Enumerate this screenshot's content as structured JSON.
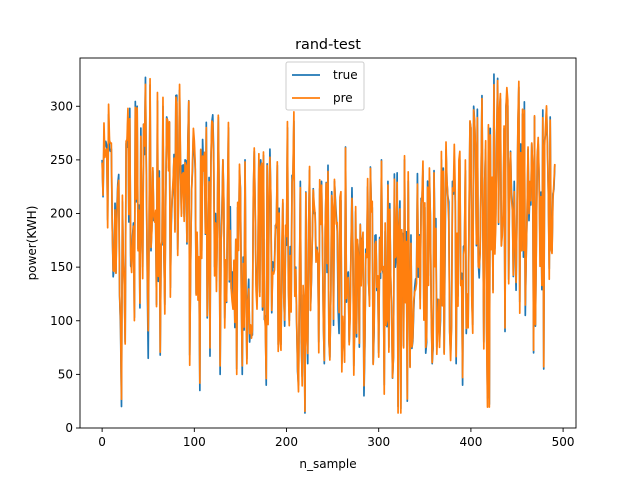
{
  "chart_data": {
    "type": "line",
    "title": "rand-test",
    "xlabel": "n_sample",
    "ylabel": "power(KWH)",
    "xlim": [
      -24,
      514
    ],
    "ylim": [
      0,
      345
    ],
    "xticks": [
      0,
      100,
      200,
      300,
      400,
      500
    ],
    "yticks": [
      0,
      50,
      100,
      150,
      200,
      250,
      300
    ],
    "xtick_labels": [
      "0",
      "100",
      "200",
      "300",
      "400",
      "500"
    ],
    "ytick_labels": [
      "0",
      "50",
      "100",
      "150",
      "200",
      "250",
      "300"
    ],
    "grid": false,
    "legend_position": "upper center",
    "n_points": 492,
    "anchors": [
      [
        0,
        250
      ],
      [
        10,
        220
      ],
      [
        20,
        160
      ],
      [
        30,
        210
      ],
      [
        40,
        220
      ],
      [
        50,
        215
      ],
      [
        60,
        205
      ],
      [
        70,
        220
      ],
      [
        80,
        225
      ],
      [
        90,
        215
      ],
      [
        100,
        205
      ],
      [
        110,
        200
      ],
      [
        120,
        190
      ],
      [
        130,
        175
      ],
      [
        140,
        170
      ],
      [
        150,
        165
      ],
      [
        160,
        160
      ],
      [
        170,
        165
      ],
      [
        180,
        150
      ],
      [
        190,
        150
      ],
      [
        200,
        155
      ],
      [
        210,
        145
      ],
      [
        220,
        140
      ],
      [
        230,
        145
      ],
      [
        240,
        140
      ],
      [
        250,
        140
      ],
      [
        260,
        150
      ],
      [
        270,
        145
      ],
      [
        280,
        150
      ],
      [
        290,
        150
      ],
      [
        300,
        145
      ],
      [
        310,
        140
      ],
      [
        320,
        145
      ],
      [
        330,
        150
      ],
      [
        340,
        150
      ],
      [
        350,
        160
      ],
      [
        360,
        160
      ],
      [
        370,
        170
      ],
      [
        380,
        175
      ],
      [
        390,
        185
      ],
      [
        400,
        190
      ],
      [
        410,
        200
      ],
      [
        420,
        200
      ],
      [
        430,
        210
      ],
      [
        440,
        215
      ],
      [
        450,
        215
      ],
      [
        460,
        215
      ],
      [
        470,
        210
      ],
      [
        480,
        215
      ],
      [
        491,
        245
      ]
    ],
    "amplitude_profile": [
      [
        0,
        80
      ],
      [
        40,
        95
      ],
      [
        120,
        95
      ],
      [
        170,
        100
      ],
      [
        220,
        100
      ],
      [
        300,
        95
      ],
      [
        340,
        100
      ],
      [
        400,
        110
      ],
      [
        450,
        100
      ],
      [
        491,
        85
      ]
    ],
    "pinned_points": [
      [
        0,
        250
      ],
      [
        3,
        262
      ],
      [
        6,
        194
      ],
      [
        9,
        258
      ],
      [
        12,
        141
      ],
      [
        16,
        205
      ],
      [
        19,
        123
      ],
      [
        21,
        20
      ],
      [
        25,
        80
      ],
      [
        28,
        290
      ],
      [
        30,
        298
      ],
      [
        35,
        103
      ],
      [
        38,
        300
      ],
      [
        41,
        112
      ],
      [
        44,
        150
      ],
      [
        47,
        327
      ],
      [
        50,
        65
      ],
      [
        52,
        320
      ],
      [
        55,
        240
      ],
      [
        57,
        195
      ],
      [
        60,
        305
      ],
      [
        63,
        68
      ],
      [
        66,
        300
      ],
      [
        68,
        115
      ],
      [
        70,
        290
      ],
      [
        73,
        285
      ],
      [
        75,
        190
      ],
      [
        80,
        310
      ],
      [
        84,
        315
      ],
      [
        86,
        200
      ],
      [
        90,
        250
      ],
      [
        95,
        68
      ],
      [
        100,
        260
      ],
      [
        103,
        180
      ],
      [
        106,
        35
      ],
      [
        110,
        240
      ],
      [
        113,
        285
      ],
      [
        117,
        67
      ],
      [
        120,
        292
      ],
      [
        123,
        200
      ],
      [
        126,
        290
      ],
      [
        128,
        50
      ],
      [
        131,
        250
      ],
      [
        134,
        150
      ],
      [
        137,
        280
      ],
      [
        140,
        130
      ],
      [
        143,
        155
      ],
      [
        146,
        55
      ],
      [
        149,
        240
      ],
      [
        152,
        50
      ],
      [
        155,
        250
      ],
      [
        158,
        120
      ],
      [
        161,
        95
      ],
      [
        165,
        258
      ],
      [
        168,
        120
      ],
      [
        172,
        250
      ],
      [
        174,
        110
      ],
      [
        178,
        40
      ],
      [
        182,
        260
      ],
      [
        186,
        150
      ],
      [
        190,
        245
      ],
      [
        193,
        90
      ],
      [
        196,
        210
      ],
      [
        198,
        95
      ],
      [
        201,
        280
      ],
      [
        203,
        100
      ],
      [
        208,
        286
      ],
      [
        210,
        150
      ],
      [
        213,
        40
      ],
      [
        216,
        80
      ],
      [
        220,
        14
      ],
      [
        223,
        60
      ],
      [
        226,
        110
      ],
      [
        230,
        200
      ],
      [
        235,
        80
      ],
      [
        238,
        230
      ],
      [
        241,
        60
      ],
      [
        245,
        245
      ],
      [
        248,
        120
      ],
      [
        252,
        230
      ],
      [
        256,
        110
      ],
      [
        260,
        60
      ],
      [
        264,
        262
      ],
      [
        268,
        80
      ],
      [
        272,
        170
      ],
      [
        276,
        85
      ],
      [
        280,
        190
      ],
      [
        284,
        30
      ],
      [
        288,
        225
      ],
      [
        290,
        120
      ],
      [
        294,
        60
      ],
      [
        297,
        180
      ],
      [
        300,
        70
      ],
      [
        303,
        250
      ],
      [
        306,
        40
      ],
      [
        310,
        230
      ],
      [
        314,
        110
      ],
      [
        318,
        150
      ],
      [
        321,
        20
      ],
      [
        324,
        18
      ],
      [
        328,
        250
      ],
      [
        331,
        25
      ],
      [
        335,
        180
      ],
      [
        338,
        110
      ],
      [
        341,
        140
      ],
      [
        345,
        120
      ],
      [
        348,
        240
      ],
      [
        352,
        80
      ],
      [
        356,
        200
      ],
      [
        358,
        60
      ],
      [
        360,
        240
      ],
      [
        364,
        120
      ],
      [
        368,
        250
      ],
      [
        371,
        70
      ],
      [
        374,
        230
      ],
      [
        377,
        90
      ],
      [
        380,
        230
      ],
      [
        384,
        60
      ],
      [
        388,
        250
      ],
      [
        391,
        40
      ],
      [
        394,
        240
      ],
      [
        396,
        120
      ],
      [
        400,
        280
      ],
      [
        403,
        300
      ],
      [
        406,
        170
      ],
      [
        409,
        140
      ],
      [
        412,
        310
      ],
      [
        414,
        80
      ],
      [
        416,
        260
      ],
      [
        418,
        28
      ],
      [
        420,
        22
      ],
      [
        423,
        230
      ],
      [
        425,
        330
      ],
      [
        427,
        200
      ],
      [
        429,
        326
      ],
      [
        431,
        290
      ],
      [
        433,
        170
      ],
      [
        437,
        90
      ],
      [
        440,
        300
      ],
      [
        444,
        220
      ],
      [
        447,
        230
      ],
      [
        450,
        200
      ],
      [
        452,
        318
      ],
      [
        455,
        170
      ],
      [
        459,
        105
      ],
      [
        462,
        260
      ],
      [
        464,
        220
      ],
      [
        466,
        265
      ],
      [
        468,
        70
      ],
      [
        470,
        95
      ],
      [
        473,
        265
      ],
      [
        476,
        220
      ],
      [
        479,
        55
      ],
      [
        482,
        298
      ],
      [
        484,
        220
      ],
      [
        486,
        290
      ],
      [
        488,
        165
      ],
      [
        491,
        245
      ]
    ],
    "series": [
      {
        "name": "true",
        "color": "#1f77b4",
        "variant": "truth"
      },
      {
        "name": "pre",
        "color": "#ff7f0e",
        "variant": "predicted"
      }
    ]
  }
}
